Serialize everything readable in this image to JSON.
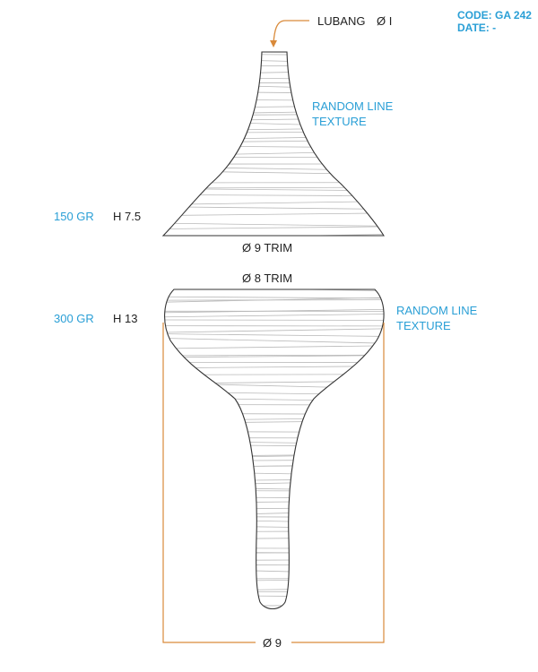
{
  "header": {
    "code": "CODE: GA 242",
    "date": "DATE: -"
  },
  "top_piece": {
    "hole_label": "LUBANG",
    "hole_diameter": "Ø I",
    "texture_line1": "RANDOM LINE",
    "texture_line2": "TEXTURE",
    "weight": "150 GR",
    "height": "H 7.5",
    "base_label": "Ø 9 TRIM"
  },
  "bottom_piece": {
    "top_label": "Ø 8 TRIM",
    "texture_line1": "RANDOM LINE",
    "texture_line2": "TEXTURE",
    "weight": "300 GR",
    "height": "H 13",
    "base_label": "Ø 9"
  },
  "colors": {
    "accent_blue": "#2a9fd6",
    "accent_orange": "#d98a3a",
    "outline": "#333333",
    "texture": "#bdbdbd",
    "text": "#222222"
  }
}
